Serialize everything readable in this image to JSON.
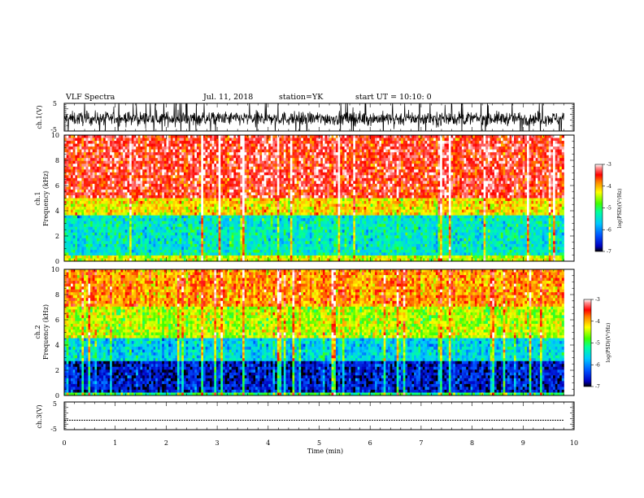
{
  "header": {
    "title": "VLF Spectra",
    "date": "Jul. 11, 2018",
    "station": "station=YK",
    "start": "start UT = 10:10: 0"
  },
  "chart_data": [
    {
      "type": "line",
      "panel": "ch1-waveform",
      "ylabel": "ch.1(V)",
      "yticks": [
        "5",
        "-5"
      ],
      "ylim": [
        -5,
        5
      ],
      "xlim": [
        0,
        10
      ],
      "color": "#000000",
      "envelope": {
        "baseline": -0.5,
        "typical_amplitude": 2.5,
        "peaks_exceed": 5,
        "data_ends_min": 9.8
      }
    },
    {
      "type": "heatmap",
      "panel": "ch1-spectrogram",
      "ylabel": [
        "ch.1",
        "Frequency (kHz)"
      ],
      "yticks": [
        "0",
        "2",
        "4",
        "6",
        "8",
        "10"
      ],
      "ylim": [
        0,
        10
      ],
      "xlim": [
        0,
        10
      ],
      "colorbar": {
        "label": "log(PSD)(V²/Hz)",
        "ticks": [
          "-3",
          "-4",
          "-5",
          "-6",
          "-7"
        ],
        "range": [
          -7,
          -3
        ]
      },
      "bands": [
        {
          "from_khz": 0,
          "to_khz": 0.4,
          "log_psd": -4.4
        },
        {
          "from_khz": 0.4,
          "to_khz": 3.6,
          "log_psd": -5.4
        },
        {
          "from_khz": 3.6,
          "to_khz": 5.0,
          "log_psd": -4.2
        },
        {
          "from_khz": 5.0,
          "to_khz": 10,
          "log_psd": -3.4
        }
      ],
      "data_ends_min": 9.8
    },
    {
      "type": "heatmap",
      "panel": "ch2-spectrogram",
      "ylabel": [
        "ch.2",
        "Frequency (kHz)"
      ],
      "yticks": [
        "0",
        "2",
        "4",
        "6",
        "8",
        "10"
      ],
      "ylim": [
        0,
        10
      ],
      "xlim": [
        0,
        10
      ],
      "colorbar": {
        "label": "log(PSD)(V²/Hz)",
        "ticks": [
          "-3",
          "-4",
          "-5",
          "-6",
          "-7"
        ],
        "range": [
          -7,
          -3
        ]
      },
      "bands": [
        {
          "from_khz": 0,
          "to_khz": 0.3,
          "log_psd": -5.0
        },
        {
          "from_khz": 0.3,
          "to_khz": 2.8,
          "log_psd": -6.6
        },
        {
          "from_khz": 2.8,
          "to_khz": 4.5,
          "log_psd": -5.6
        },
        {
          "from_khz": 4.5,
          "to_khz": 7.0,
          "log_psd": -4.5
        },
        {
          "from_khz": 7.0,
          "to_khz": 10,
          "log_psd": -3.9
        }
      ],
      "data_ends_min": 9.8
    },
    {
      "type": "line",
      "panel": "ch3-waveform",
      "ylabel": "ch.3(V)",
      "yticks": [
        "5",
        "-5"
      ],
      "ylim": [
        -5,
        5
      ],
      "xlim": [
        0,
        10
      ],
      "xlabel": "Time (min)",
      "xticks": [
        "0",
        "1",
        "2",
        "3",
        "4",
        "5",
        "6",
        "7",
        "8",
        "9",
        "10"
      ],
      "color": "#000000",
      "series": [
        {
          "x": [
            0,
            9.8
          ],
          "y": [
            -1.6,
            -1.6
          ]
        }
      ]
    }
  ]
}
